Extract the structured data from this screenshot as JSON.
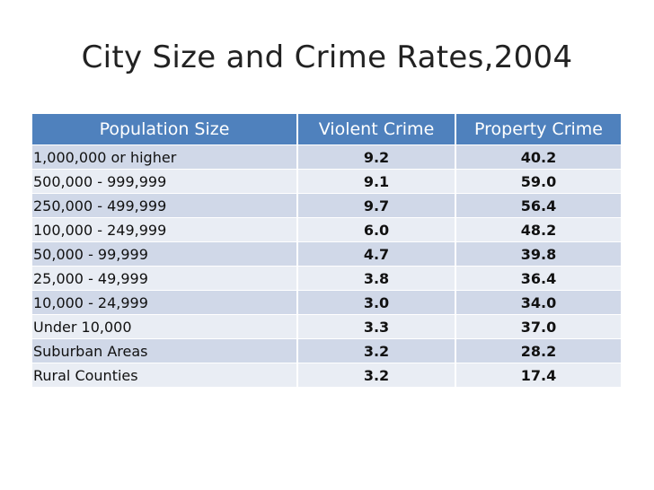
{
  "title": "City Size and Crime Rates,2004",
  "table": {
    "headers": [
      "Population Size",
      "Violent Crime",
      "Property Crime"
    ],
    "rows": [
      [
        "1,000,000 or higher",
        "9.2",
        "40.2"
      ],
      [
        "500,000 - 999,999",
        "9.1",
        "59.0"
      ],
      [
        "250,000 - 499,999",
        "9.7",
        "56.4"
      ],
      [
        "100,000 - 249,999",
        "6.0",
        "48.2"
      ],
      [
        "50,000 - 99,999",
        "4.7",
        "39.8"
      ],
      [
        "25,000 - 49,999",
        "3.8",
        "36.4"
      ],
      [
        "10,000 - 24,999",
        "3.0",
        "34.0"
      ],
      [
        "Under 10,000",
        "3.3",
        "37.0"
      ],
      [
        "Suburban Areas",
        "3.2",
        "28.2"
      ],
      [
        "Rural Counties",
        "3.2",
        "17.4"
      ]
    ]
  },
  "colors": {
    "header_bg": "#4f81bd",
    "row_odd": "#d0d8e8",
    "row_even": "#e9edf4"
  }
}
